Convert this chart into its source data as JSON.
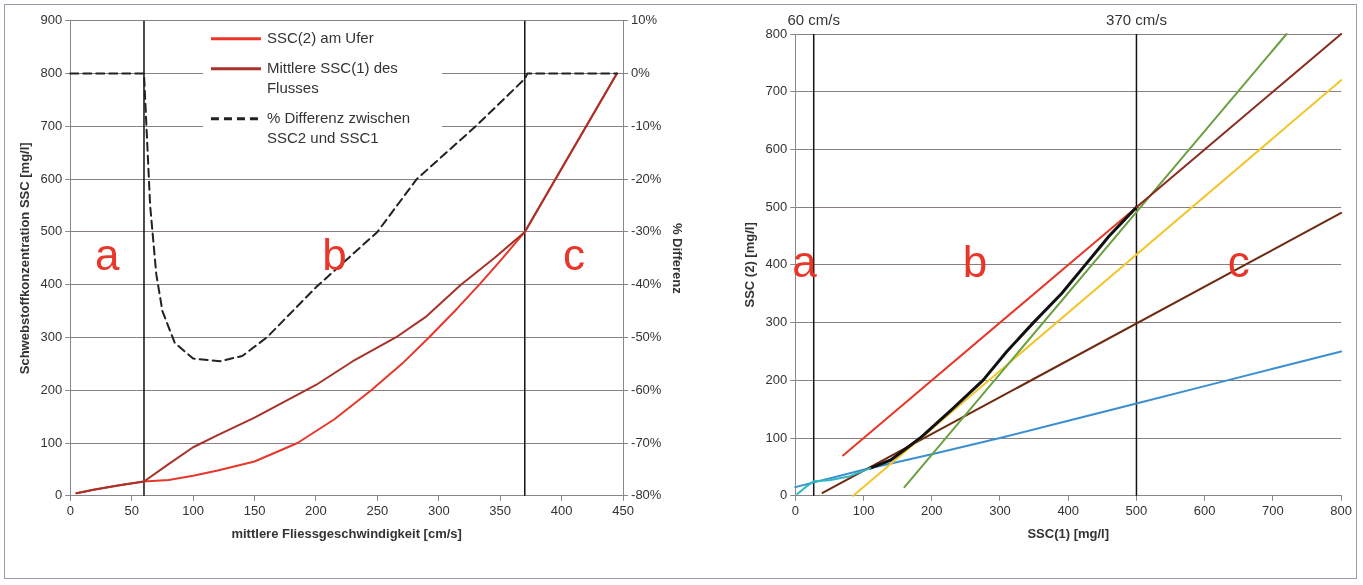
{
  "chart_data": [
    {
      "type": "line",
      "xlabel": "mittlere Fliessgeschwindigkeit [cm/s]",
      "ylabel": "Schwebstoffkonzentration SSC [mg/l]",
      "y2label": "% Differenz",
      "xlim": [
        0,
        450
      ],
      "xticks": [
        0,
        50,
        100,
        150,
        200,
        250,
        300,
        350,
        400,
        450
      ],
      "ylim": [
        0,
        900
      ],
      "yticks": [
        0,
        100,
        200,
        300,
        400,
        500,
        600,
        700,
        800,
        900
      ],
      "y2lim": [
        -80,
        10
      ],
      "y2ticks": [
        {
          "value": -80,
          "label": "-80%"
        },
        {
          "value": -70,
          "label": "-70%"
        },
        {
          "value": -60,
          "label": "-60%"
        },
        {
          "value": -50,
          "label": "-50%"
        },
        {
          "value": -40,
          "label": "-40%"
        },
        {
          "value": -30,
          "label": "-30%"
        },
        {
          "value": -20,
          "label": "-20%"
        },
        {
          "value": -10,
          "label": "-10%"
        },
        {
          "value": 0,
          "label": "0%"
        },
        {
          "value": 10,
          "label": "10%"
        }
      ],
      "grid": "y",
      "legend": "top",
      "series": [
        {
          "name": "SSC(2) am Ufer",
          "color": "#e8372a",
          "x": [
            5,
            20,
            40,
            60,
            80,
            100,
            120,
            150,
            185,
            215,
            245,
            270,
            292,
            315,
            333,
            350,
            370,
            400,
            445
          ],
          "values": [
            5,
            12,
            20,
            27,
            30,
            38,
            48,
            65,
            100,
            145,
            200,
            250,
            300,
            355,
            400,
            445,
            500,
            620,
            800
          ]
        },
        {
          "name": "Mittlere SSC(1) des Flusses",
          "color": "#a8322a",
          "x": [
            5,
            20,
            40,
            60,
            80,
            100,
            120,
            150,
            200,
            230,
            265,
            290,
            318,
            345,
            370,
            400,
            445
          ],
          "values": [
            5,
            12,
            20,
            27,
            60,
            92,
            115,
            148,
            210,
            255,
            300,
            340,
            400,
            450,
            500,
            620,
            800
          ]
        },
        {
          "name": "% Differenz zwischen SSC2 und SSC1",
          "color": "#222222",
          "axis": "y2",
          "line_style": "dashed",
          "x": [
            0,
            60,
            62,
            65,
            70,
            75,
            85,
            100,
            122,
            140,
            160,
            200,
            250,
            282,
            330,
            370,
            372,
            445
          ],
          "values": [
            0,
            0,
            -10,
            -25,
            -38,
            -45,
            -51,
            -54,
            -54.5,
            -53.5,
            -50,
            -40.5,
            -30,
            -20,
            -10,
            -1,
            0,
            0
          ]
        }
      ],
      "ref_lines": [
        {
          "axis": "x",
          "value": 60,
          "color": "#111111"
        },
        {
          "axis": "x",
          "value": 370,
          "color": "#111111"
        }
      ],
      "annotations": [
        "a",
        "b",
        "c"
      ]
    },
    {
      "type": "line",
      "xlabel": "SSC(1) [mg/l]",
      "ylabel": "SSC (2) [mg/l]",
      "xlim": [
        0,
        800
      ],
      "xticks": [
        0,
        100,
        200,
        300,
        400,
        500,
        600,
        700,
        800
      ],
      "ylim": [
        0,
        800
      ],
      "yticks": [
        0,
        100,
        200,
        300,
        400,
        500,
        600,
        700,
        800
      ],
      "grid": "y",
      "series": [
        {
          "color": "#3b8fd0",
          "x": [
            0,
            100,
            200,
            300,
            400,
            500,
            600,
            700,
            800
          ],
          "values": [
            15,
            45,
            72,
            100,
            130,
            160,
            190,
            220,
            250
          ]
        },
        {
          "color": "#6e2a10",
          "x": [
            40,
            800
          ],
          "values": [
            5,
            490
          ]
        },
        {
          "color": "#f2c52a",
          "x": [
            85,
            800
          ],
          "values": [
            0,
            720
          ]
        },
        {
          "color": "#e8372a",
          "x": [
            70,
            500
          ],
          "values": [
            70,
            500
          ]
        },
        {
          "color": "#6aa040",
          "x": [
            160,
            720
          ],
          "values": [
            15,
            800
          ]
        },
        {
          "color": "#111111",
          "x": [
            110,
            140,
            183,
            230,
            275,
            310,
            349,
            390,
            425,
            460,
            500
          ],
          "values": [
            48,
            62,
            100,
            150,
            200,
            250,
            300,
            350,
            400,
            450,
            500
          ]
        },
        {
          "color": "#30b8c0",
          "x": [
            3,
            15,
            27,
            50,
            80,
            110
          ],
          "values": [
            3,
            15,
            25,
            27,
            34,
            48
          ]
        },
        {
          "color": "#8a2a20",
          "x": [
            500,
            600,
            700,
            800
          ],
          "values": [
            500,
            600,
            700,
            800
          ]
        }
      ],
      "ref_lines": [
        {
          "axis": "x",
          "value": 27,
          "label": "60 cm/s",
          "color": "#111111"
        },
        {
          "axis": "x",
          "value": 500,
          "label": "370 cm/s",
          "color": "#111111"
        }
      ],
      "annotations": [
        "a",
        "b",
        "c"
      ]
    }
  ]
}
